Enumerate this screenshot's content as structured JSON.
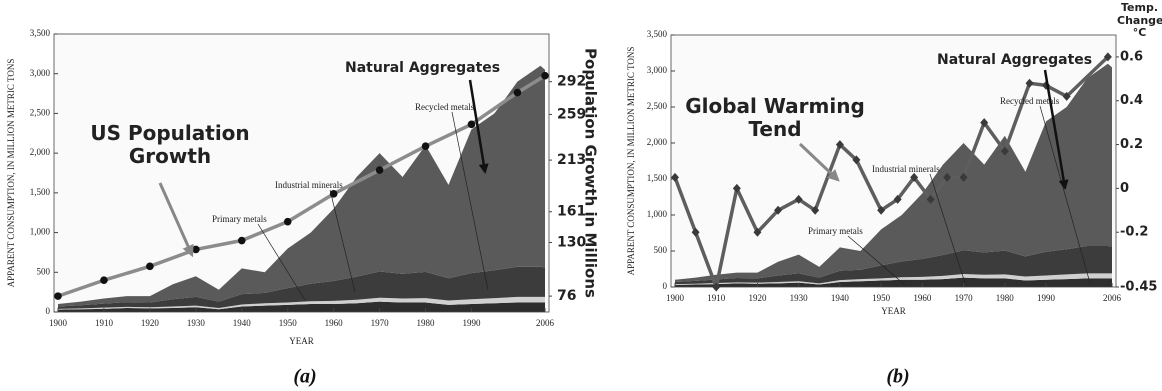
{
  "chart_data": [
    {
      "type": "stacked-area",
      "caption": "(a)",
      "ylabel": "APPARENT CONSUMPTION, IN MILLION METRIC TONS",
      "xlabel": "YEAR",
      "y2label": "Population Growth in Millions",
      "x": [
        1900,
        1905,
        1910,
        1915,
        1920,
        1925,
        1930,
        1935,
        1940,
        1945,
        1950,
        1955,
        1960,
        1965,
        1970,
        1975,
        1980,
        1985,
        1990,
        1995,
        2000,
        2005,
        2006
      ],
      "xlim": [
        1900,
        2006
      ],
      "xticks": [
        1900,
        1910,
        1920,
        1930,
        1940,
        1950,
        1960,
        1970,
        1980,
        1990,
        2006
      ],
      "ylim": [
        0,
        3500
      ],
      "yticks": [
        0,
        500,
        {
          "value": 1000,
          "label": "1,000"
        },
        {
          "value": 1500,
          "label": "1,500"
        },
        {
          "value": 2000,
          "label": "2,000"
        },
        {
          "value": 2500,
          "label": "2,500"
        },
        {
          "value": 3000,
          "label": "3,000"
        },
        {
          "value": 3500,
          "label": "3,500"
        }
      ],
      "y2lim": [
        60,
        340
      ],
      "y2ticks": [
        76,
        130,
        161,
        213,
        259,
        292
      ],
      "series": [
        {
          "name": "Primary metals",
          "color": "#2e2e2e",
          "values": [
            30,
            35,
            40,
            50,
            45,
            50,
            60,
            35,
            70,
            80,
            90,
            100,
            100,
            110,
            130,
            120,
            120,
            90,
            100,
            110,
            120,
            120,
            120
          ]
        },
        {
          "name": "Recycled metals",
          "color": "#d0d0d0",
          "values": [
            10,
            10,
            15,
            15,
            15,
            20,
            20,
            15,
            25,
            30,
            30,
            35,
            40,
            45,
            50,
            50,
            55,
            55,
            60,
            65,
            70,
            70,
            70
          ]
        },
        {
          "name": "Industrial minerals",
          "color": "#3c3c3c",
          "values": [
            30,
            40,
            50,
            60,
            60,
            90,
            110,
            80,
            130,
            130,
            180,
            220,
            250,
            290,
            330,
            310,
            330,
            280,
            330,
            350,
            380,
            380,
            370
          ]
        },
        {
          "name": "Natural Aggregates",
          "color": "#5a5a5a",
          "values": [
            30,
            45,
            65,
            75,
            80,
            190,
            260,
            150,
            325,
            260,
            500,
            645,
            910,
            1255,
            1490,
            1220,
            1595,
            1175,
            1810,
            1975,
            2330,
            2530,
            2490
          ]
        },
        {
          "name": "US Population Growth",
          "type": "line",
          "axis": "y2",
          "color": "#8c8c8c",
          "marker": "circle",
          "marker_color": "#111",
          "x": [
            1900,
            1910,
            1920,
            1930,
            1940,
            1950,
            1960,
            1970,
            1980,
            1990,
            2000,
            2006
          ],
          "values": [
            76,
            92,
            106,
            123,
            132,
            151,
            179,
            203,
            227,
            249,
            281,
            298
          ]
        }
      ]
    },
    {
      "type": "stacked-area",
      "caption": "(b)",
      "ylabel": "APPARENT CONSUMPTION, IN MILLION METRIC TONS",
      "xlabel": "YEAR",
      "y2label": "Temp. Change °C",
      "x": [
        1900,
        1905,
        1910,
        1915,
        1920,
        1925,
        1930,
        1935,
        1940,
        1945,
        1950,
        1955,
        1960,
        1965,
        1970,
        1975,
        1980,
        1985,
        1990,
        1995,
        2000,
        2005,
        2006
      ],
      "xlim": [
        1900,
        2006
      ],
      "xticks": [
        1900,
        1910,
        1920,
        1930,
        1940,
        1950,
        1960,
        1970,
        1980,
        1990,
        2006
      ],
      "ylim": [
        0,
        3500
      ],
      "yticks": [
        0,
        500,
        {
          "value": 1000,
          "label": "1,000"
        },
        {
          "value": 1500,
          "label": "1,500"
        },
        {
          "value": 2000,
          "label": "2,000"
        },
        {
          "value": 2500,
          "label": "2,500"
        },
        {
          "value": 3000,
          "label": "3,000"
        },
        {
          "value": 3500,
          "label": "3,500"
        }
      ],
      "y2lim": [
        -0.45,
        0.7
      ],
      "y2ticks": [
        -0.45,
        -0.2,
        0,
        0.2,
        0.4,
        0.6
      ],
      "series": [
        {
          "name": "Primary metals",
          "color": "#2e2e2e",
          "values": [
            30,
            35,
            40,
            50,
            45,
            50,
            60,
            35,
            70,
            80,
            90,
            100,
            100,
            110,
            130,
            120,
            120,
            90,
            100,
            110,
            120,
            120,
            120
          ]
        },
        {
          "name": "Recycled metals",
          "color": "#d0d0d0",
          "values": [
            10,
            10,
            15,
            15,
            15,
            20,
            20,
            15,
            25,
            30,
            30,
            35,
            40,
            45,
            50,
            50,
            55,
            55,
            60,
            65,
            70,
            70,
            70
          ]
        },
        {
          "name": "Industrial minerals",
          "color": "#3c3c3c",
          "values": [
            30,
            40,
            50,
            60,
            60,
            90,
            110,
            80,
            130,
            130,
            180,
            220,
            250,
            290,
            330,
            310,
            330,
            280,
            330,
            350,
            380,
            380,
            370
          ]
        },
        {
          "name": "Natural Aggregates",
          "color": "#5a5a5a",
          "values": [
            30,
            45,
            65,
            75,
            80,
            190,
            260,
            150,
            325,
            260,
            500,
            645,
            910,
            1255,
            1490,
            1220,
            1595,
            1175,
            1810,
            1975,
            2330,
            2530,
            2490
          ]
        },
        {
          "name": "Global Warming Tend",
          "type": "line",
          "axis": "y2",
          "color": "#5e5e5e",
          "marker": "diamond",
          "marker_color": "#3a3a3a",
          "x": [
            1900,
            1905,
            1910,
            1915,
            1920,
            1925,
            1930,
            1934,
            1940,
            1944,
            1950,
            1954,
            1958,
            1962,
            1966,
            1970,
            1975,
            1980,
            1986,
            1990,
            1995,
            2005
          ],
          "values": [
            0.05,
            -0.2,
            -0.45,
            0,
            -0.2,
            -0.1,
            -0.05,
            -0.1,
            0.2,
            0.13,
            -0.1,
            -0.05,
            0.05,
            -0.05,
            0.05,
            0.05,
            0.3,
            0.17,
            0.48,
            0.47,
            0.42,
            0.6
          ]
        }
      ]
    }
  ]
}
